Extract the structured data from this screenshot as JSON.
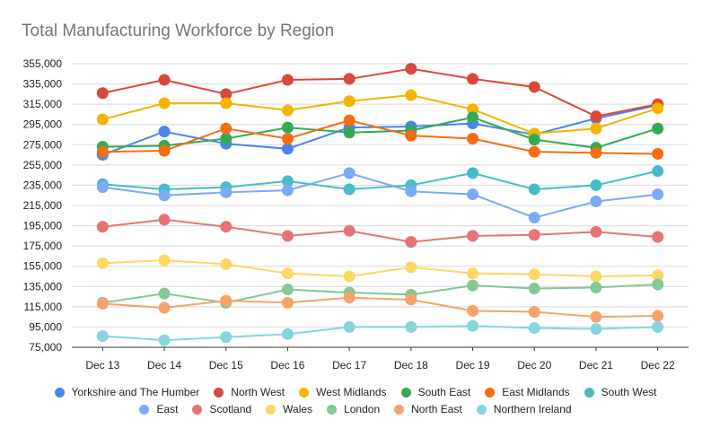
{
  "chart_data": {
    "type": "line",
    "title": "Total Manufacturing Workforce by Region",
    "categories": [
      "Dec 13",
      "Dec 14",
      "Dec 15",
      "Dec 16",
      "Dec 17",
      "Dec 18",
      "Dec 19",
      "Dec 20",
      "Dec 21",
      "Dec 22"
    ],
    "ylim": [
      75000,
      355000
    ],
    "yticks": [
      "75,000",
      "95,000",
      "115,000",
      "135,000",
      "155,000",
      "175,000",
      "195,000",
      "215,000",
      "235,000",
      "255,000",
      "275,000",
      "295,000",
      "315,000",
      "335,000",
      "355,000"
    ],
    "grid": true,
    "legend_position": "bottom",
    "series": [
      {
        "name": "Yorkshire and The Humber",
        "color": "#4a86e8",
        "values": [
          265000,
          288000,
          276000,
          271000,
          292000,
          293000,
          296000,
          285000,
          301000,
          314000
        ]
      },
      {
        "name": "North West",
        "color": "#d9483b",
        "values": [
          326000,
          339000,
          325000,
          339000,
          340000,
          350000,
          340000,
          332000,
          303000,
          315000
        ]
      },
      {
        "name": "West Midlands",
        "color": "#f4b400",
        "values": [
          300000,
          316000,
          316000,
          309000,
          318000,
          324000,
          310000,
          286000,
          291000,
          311000
        ]
      },
      {
        "name": "South East",
        "color": "#34a853",
        "values": [
          273000,
          274000,
          281000,
          292000,
          287000,
          289000,
          302000,
          280000,
          272000,
          291000
        ]
      },
      {
        "name": "East Midlands",
        "color": "#f46d10",
        "values": [
          268000,
          269000,
          291000,
          281000,
          299000,
          284000,
          281000,
          268000,
          267000,
          266000
        ]
      },
      {
        "name": "South West",
        "color": "#46bdc6",
        "values": [
          236000,
          231000,
          233000,
          239000,
          231000,
          235000,
          247000,
          231000,
          235000,
          249000
        ]
      },
      {
        "name": "East",
        "color": "#7baaf7",
        "values": [
          233000,
          225000,
          228000,
          230000,
          247000,
          229000,
          226000,
          203000,
          219000,
          226000
        ]
      },
      {
        "name": "Scotland",
        "color": "#e57373",
        "values": [
          194000,
          201000,
          194000,
          185000,
          190000,
          179000,
          185000,
          186000,
          189000,
          184000
        ]
      },
      {
        "name": "Wales",
        "color": "#fdd663",
        "values": [
          158000,
          161000,
          157000,
          148000,
          145000,
          154000,
          148000,
          147000,
          145000,
          146000
        ]
      },
      {
        "name": "London",
        "color": "#81c995",
        "values": [
          119000,
          128000,
          119000,
          132000,
          129000,
          127000,
          136000,
          133000,
          134000,
          137000
        ]
      },
      {
        "name": "North East",
        "color": "#f6a36b",
        "values": [
          118000,
          114000,
          121000,
          119000,
          124000,
          122000,
          111000,
          110000,
          105000,
          106000
        ]
      },
      {
        "name": "Northern Ireland",
        "color": "#86d4dc",
        "values": [
          86000,
          82000,
          85000,
          88000,
          95000,
          95000,
          96000,
          94000,
          93000,
          95000
        ]
      }
    ]
  }
}
